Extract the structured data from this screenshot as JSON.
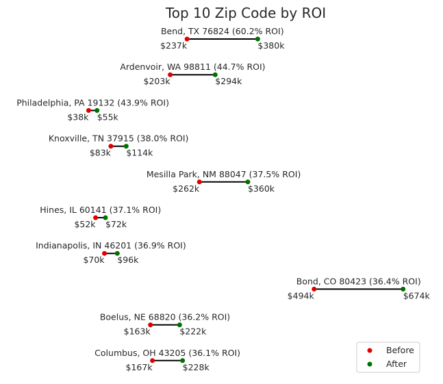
{
  "chart_data": {
    "type": "dumbbell",
    "title": "Top 10 Zip Code by ROI",
    "xlabel": "",
    "ylabel": "",
    "xlim": [
      0,
      700
    ],
    "colors": {
      "before": "#e00000",
      "after": "#007000",
      "line": "#000000"
    },
    "legend": {
      "position": "bottom-right",
      "entries": [
        {
          "name": "Before",
          "color": "#e00000"
        },
        {
          "name": "After",
          "color": "#007000"
        }
      ]
    },
    "rows": [
      {
        "label": "Bend, TX 76824 (60.2% ROI)",
        "before": 237,
        "after": 380,
        "before_label": "$237k",
        "after_label": "$380k"
      },
      {
        "label": "Ardenvoir, WA 98811 (44.7% ROI)",
        "before": 203,
        "after": 294,
        "before_label": "$203k",
        "after_label": "$294k"
      },
      {
        "label": "Philadelphia, PA 19132 (43.9% ROI)",
        "before": 38,
        "after": 55,
        "before_label": "$38k",
        "after_label": "$55k"
      },
      {
        "label": "Knoxville, TN 37915 (38.0% ROI)",
        "before": 83,
        "after": 114,
        "before_label": "$83k",
        "after_label": "$114k"
      },
      {
        "label": "Mesilla Park, NM 88047 (37.5% ROI)",
        "before": 262,
        "after": 360,
        "before_label": "$262k",
        "after_label": "$360k"
      },
      {
        "label": "Hines, IL 60141 (37.1% ROI)",
        "before": 52,
        "after": 72,
        "before_label": "$52k",
        "after_label": "$72k"
      },
      {
        "label": "Indianapolis, IN 46201 (36.9% ROI)",
        "before": 70,
        "after": 96,
        "before_label": "$70k",
        "after_label": "$96k"
      },
      {
        "label": "Bond, CO 80423 (36.4% ROI)",
        "before": 494,
        "after": 674,
        "before_label": "$494k",
        "after_label": "$674k"
      },
      {
        "label": "Boelus, NE 68820 (36.2% ROI)",
        "before": 163,
        "after": 222,
        "before_label": "$163k",
        "after_label": "$222k"
      },
      {
        "label": "Columbus, OH 43205 (36.1% ROI)",
        "before": 167,
        "after": 228,
        "before_label": "$167k",
        "after_label": "$228k"
      }
    ]
  }
}
